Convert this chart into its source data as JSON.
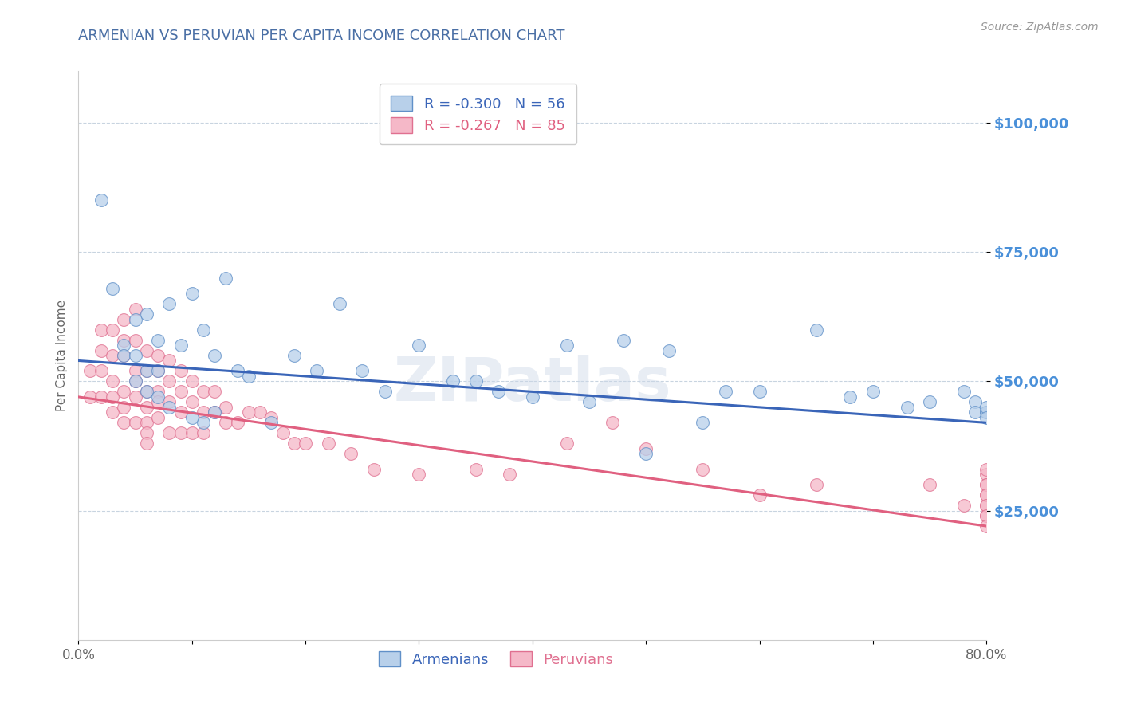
{
  "title": "ARMENIAN VS PERUVIAN PER CAPITA INCOME CORRELATION CHART",
  "source": "Source: ZipAtlas.com",
  "ylabel": "Per Capita Income",
  "watermark": "ZIPatlas",
  "title_color": "#4a6fa5",
  "source_color": "#999999",
  "ylabel_color": "#666666",
  "background_color": "#ffffff",
  "grid_color": "#c8d4e0",
  "ytick_color": "#4a90d9",
  "xtick_color": "#666666",
  "ylim": [
    0,
    110000
  ],
  "xlim": [
    0.0,
    0.8
  ],
  "yticks": [
    25000,
    50000,
    75000,
    100000
  ],
  "ytick_labels": [
    "$25,000",
    "$50,000",
    "$75,000",
    "$100,000"
  ],
  "xticks": [
    0.0,
    0.1,
    0.2,
    0.3,
    0.4,
    0.5,
    0.6,
    0.7,
    0.8
  ],
  "xtick_labels": [
    "0.0%",
    "",
    "",
    "",
    "",
    "",
    "",
    "",
    "80.0%"
  ],
  "armenian_color": "#b8d0ea",
  "peruvian_color": "#f5b8c8",
  "armenian_edge_color": "#6090c8",
  "peruvian_edge_color": "#e07090",
  "armenian_line_color": "#3a65b8",
  "peruvian_line_color": "#e06080",
  "legend_armenian_label": "R = -0.300   N = 56",
  "legend_peruvian_label": "R = -0.267   N = 85",
  "legend_label_armenians": "Armenians",
  "legend_label_peruvians": "Peruvians",
  "armenian_scatter_x": [
    0.02,
    0.03,
    0.04,
    0.04,
    0.05,
    0.05,
    0.05,
    0.06,
    0.06,
    0.06,
    0.07,
    0.07,
    0.07,
    0.08,
    0.08,
    0.09,
    0.1,
    0.1,
    0.11,
    0.11,
    0.12,
    0.12,
    0.13,
    0.14,
    0.15,
    0.17,
    0.19,
    0.21,
    0.23,
    0.25,
    0.27,
    0.3,
    0.33,
    0.35,
    0.37,
    0.4,
    0.43,
    0.45,
    0.48,
    0.5,
    0.52,
    0.55,
    0.57,
    0.6,
    0.65,
    0.68,
    0.7,
    0.73,
    0.75,
    0.78,
    0.79,
    0.79,
    0.8,
    0.8,
    0.8,
    0.8
  ],
  "armenian_scatter_y": [
    85000,
    68000,
    57000,
    55000,
    62000,
    55000,
    50000,
    63000,
    52000,
    48000,
    58000,
    52000,
    47000,
    65000,
    45000,
    57000,
    67000,
    43000,
    60000,
    42000,
    55000,
    44000,
    70000,
    52000,
    51000,
    42000,
    55000,
    52000,
    65000,
    52000,
    48000,
    57000,
    50000,
    50000,
    48000,
    47000,
    57000,
    46000,
    58000,
    36000,
    56000,
    42000,
    48000,
    48000,
    60000,
    47000,
    48000,
    45000,
    46000,
    48000,
    46000,
    44000,
    44000,
    44000,
    45000,
    43000
  ],
  "peruvian_scatter_x": [
    0.01,
    0.01,
    0.02,
    0.02,
    0.02,
    0.02,
    0.03,
    0.03,
    0.03,
    0.03,
    0.03,
    0.04,
    0.04,
    0.04,
    0.04,
    0.04,
    0.04,
    0.05,
    0.05,
    0.05,
    0.05,
    0.05,
    0.05,
    0.06,
    0.06,
    0.06,
    0.06,
    0.06,
    0.06,
    0.06,
    0.07,
    0.07,
    0.07,
    0.07,
    0.07,
    0.08,
    0.08,
    0.08,
    0.08,
    0.09,
    0.09,
    0.09,
    0.09,
    0.1,
    0.1,
    0.1,
    0.11,
    0.11,
    0.11,
    0.12,
    0.12,
    0.13,
    0.13,
    0.14,
    0.15,
    0.16,
    0.17,
    0.18,
    0.19,
    0.2,
    0.22,
    0.24,
    0.26,
    0.3,
    0.35,
    0.38,
    0.43,
    0.47,
    0.5,
    0.55,
    0.6,
    0.65,
    0.75,
    0.78,
    0.8,
    0.8,
    0.8,
    0.8,
    0.8,
    0.8,
    0.8,
    0.8,
    0.8,
    0.8,
    0.8
  ],
  "peruvian_scatter_y": [
    52000,
    47000,
    60000,
    56000,
    52000,
    47000,
    60000,
    55000,
    50000,
    47000,
    44000,
    62000,
    58000,
    55000,
    48000,
    45000,
    42000,
    64000,
    58000,
    52000,
    50000,
    47000,
    42000,
    56000,
    52000,
    48000,
    45000,
    42000,
    40000,
    38000,
    55000,
    52000,
    48000,
    46000,
    43000,
    54000,
    50000,
    46000,
    40000,
    52000,
    48000,
    44000,
    40000,
    50000,
    46000,
    40000,
    48000,
    44000,
    40000,
    48000,
    44000,
    45000,
    42000,
    42000,
    44000,
    44000,
    43000,
    40000,
    38000,
    38000,
    38000,
    36000,
    33000,
    32000,
    33000,
    32000,
    38000,
    42000,
    37000,
    33000,
    28000,
    30000,
    30000,
    26000,
    32000,
    30000,
    28000,
    26000,
    24000,
    33000,
    30000,
    28000,
    26000,
    24000,
    22000
  ],
  "armenian_trend_x": [
    0.0,
    0.8
  ],
  "armenian_trend_y": [
    54000,
    42000
  ],
  "peruvian_trend_x": [
    0.0,
    0.8
  ],
  "peruvian_trend_y": [
    47000,
    22000
  ]
}
